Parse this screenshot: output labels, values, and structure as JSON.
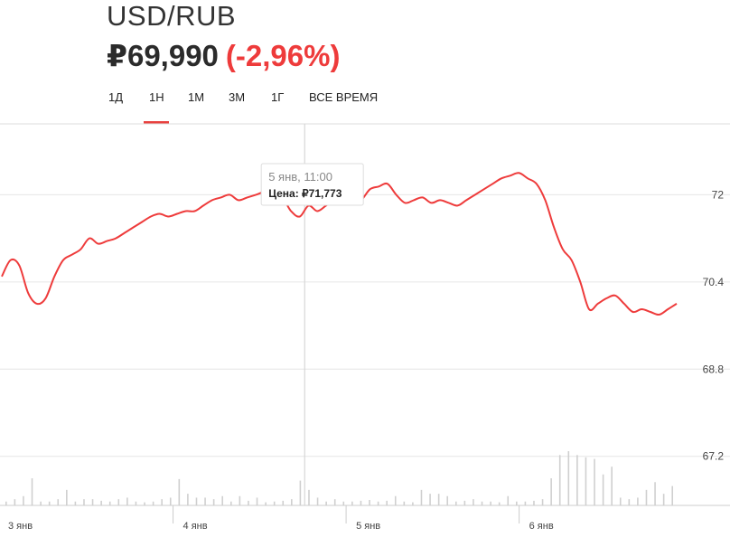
{
  "header": {
    "pair": "USD/RUB",
    "price": "₽69,990",
    "change": "(-2,96%)"
  },
  "tabs": [
    {
      "label": "1Д"
    },
    {
      "label": "1Н",
      "active": true
    },
    {
      "label": "1М"
    },
    {
      "label": "3М"
    },
    {
      "label": "1Г"
    },
    {
      "label": "ВСЕ ВРЕМЯ"
    }
  ],
  "tooltip": {
    "date": "5 янв, 11:00",
    "price_label": "Цена: ₽71,773"
  },
  "colors": {
    "line": "#ee3b3b",
    "accent": "#e8413f",
    "grid": "#e6e6e6",
    "volume": "#cfcfcf"
  },
  "chart_data": {
    "type": "line",
    "ylim": [
      66.3,
      73.3
    ],
    "yticks": [
      {
        "value": 72,
        "label": "72"
      },
      {
        "value": 70.4,
        "label": "70.4"
      },
      {
        "value": 68.8,
        "label": "68.8"
      },
      {
        "value": 67.2,
        "label": "67.2"
      }
    ],
    "xlim": [
      0,
      78
    ],
    "xticks": [
      {
        "x": 0,
        "label": "3 янв"
      },
      {
        "x": 20,
        "label": "4 янв"
      },
      {
        "x": 40,
        "label": "5 янв"
      },
      {
        "x": 60,
        "label": "6 янв"
      }
    ],
    "tooltip_x": 35,
    "series": [
      {
        "values": [
          70.5,
          70.8,
          70.7,
          70.2,
          70.0,
          70.1,
          70.5,
          70.8,
          70.9,
          71.0,
          71.2,
          71.1,
          71.15,
          71.2,
          71.3,
          71.4,
          71.5,
          71.6,
          71.65,
          71.6,
          71.65,
          71.7,
          71.7,
          71.8,
          71.9,
          71.95,
          72.0,
          71.9,
          71.95,
          72.0,
          72.05,
          72.0,
          71.95,
          71.7,
          71.6,
          71.8,
          71.7,
          71.8,
          71.9,
          71.9,
          71.85,
          71.9,
          72.1,
          72.15,
          72.2,
          72.0,
          71.85,
          71.9,
          71.95,
          71.85,
          71.9,
          71.85,
          71.8,
          71.9,
          72.0,
          72.1,
          72.2,
          72.3,
          72.35,
          72.4,
          72.3,
          72.2,
          71.9,
          71.4,
          71.0,
          70.8,
          70.4,
          69.9,
          70.0,
          70.1,
          70.15,
          70.0,
          69.85,
          69.9,
          69.85,
          69.8,
          69.9,
          70.0
        ]
      }
    ],
    "volume": [
      0.05,
      0.08,
      0.12,
      0.35,
      0.05,
      0.05,
      0.08,
      0.2,
      0.05,
      0.08,
      0.08,
      0.06,
      0.05,
      0.08,
      0.1,
      0.05,
      0.04,
      0.05,
      0.08,
      0.1,
      0.34,
      0.15,
      0.1,
      0.1,
      0.08,
      0.12,
      0.05,
      0.12,
      0.06,
      0.1,
      0.04,
      0.05,
      0.06,
      0.08,
      0.32,
      0.2,
      0.1,
      0.05,
      0.08,
      0.05,
      0.05,
      0.06,
      0.07,
      0.05,
      0.06,
      0.12,
      0.05,
      0.04,
      0.2,
      0.15,
      0.15,
      0.12,
      0.05,
      0.06,
      0.08,
      0.05,
      0.05,
      0.04,
      0.12,
      0.05,
      0.05,
      0.06,
      0.08,
      0.35,
      0.65,
      0.7,
      0.65,
      0.62,
      0.6,
      0.4,
      0.5,
      0.1,
      0.08,
      0.1,
      0.2,
      0.3,
      0.15,
      0.25
    ]
  }
}
